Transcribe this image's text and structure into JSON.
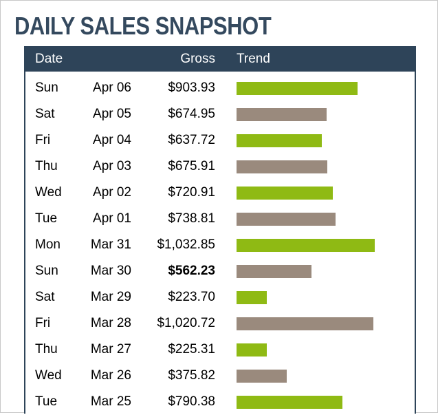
{
  "title": "DAILY SALES SNAPSHOT",
  "columns": {
    "date": "Date",
    "gross": "Gross",
    "trend": "Trend"
  },
  "colors": {
    "header": "#2e4459",
    "title": "#34495e",
    "bar_green": "#8fba14",
    "bar_gray": "#9a8a7d"
  },
  "bar_max_value": 1032.85,
  "rows": [
    {
      "day": "Sun",
      "date": "Apr 06",
      "gross": "$903.93",
      "value": 903.93,
      "bar": "green",
      "bold": false
    },
    {
      "day": "Sat",
      "date": "Apr 05",
      "gross": "$674.95",
      "value": 674.95,
      "bar": "gray",
      "bold": false
    },
    {
      "day": "Fri",
      "date": "Apr 04",
      "gross": "$637.72",
      "value": 637.72,
      "bar": "green",
      "bold": false
    },
    {
      "day": "Thu",
      "date": "Apr 03",
      "gross": "$675.91",
      "value": 675.91,
      "bar": "gray",
      "bold": false
    },
    {
      "day": "Wed",
      "date": "Apr 02",
      "gross": "$720.91",
      "value": 720.91,
      "bar": "green",
      "bold": false
    },
    {
      "day": "Tue",
      "date": "Apr 01",
      "gross": "$738.81",
      "value": 738.81,
      "bar": "gray",
      "bold": false
    },
    {
      "day": "Mon",
      "date": "Mar 31",
      "gross": "$1,032.85",
      "value": 1032.85,
      "bar": "green",
      "bold": false
    },
    {
      "day": "Sun",
      "date": "Mar 30",
      "gross": "$562.23",
      "value": 562.23,
      "bar": "gray",
      "bold": true
    },
    {
      "day": "Sat",
      "date": "Mar 29",
      "gross": "$223.70",
      "value": 223.7,
      "bar": "green",
      "bold": false
    },
    {
      "day": "Fri",
      "date": "Mar 28",
      "gross": "$1,020.72",
      "value": 1020.72,
      "bar": "gray",
      "bold": false
    },
    {
      "day": "Thu",
      "date": "Mar 27",
      "gross": "$225.31",
      "value": 225.31,
      "bar": "green",
      "bold": false
    },
    {
      "day": "Wed",
      "date": "Mar 26",
      "gross": "$375.82",
      "value": 375.82,
      "bar": "gray",
      "bold": false
    },
    {
      "day": "Tue",
      "date": "Mar 25",
      "gross": "$790.38",
      "value": 790.38,
      "bar": "green",
      "bold": false
    }
  ]
}
